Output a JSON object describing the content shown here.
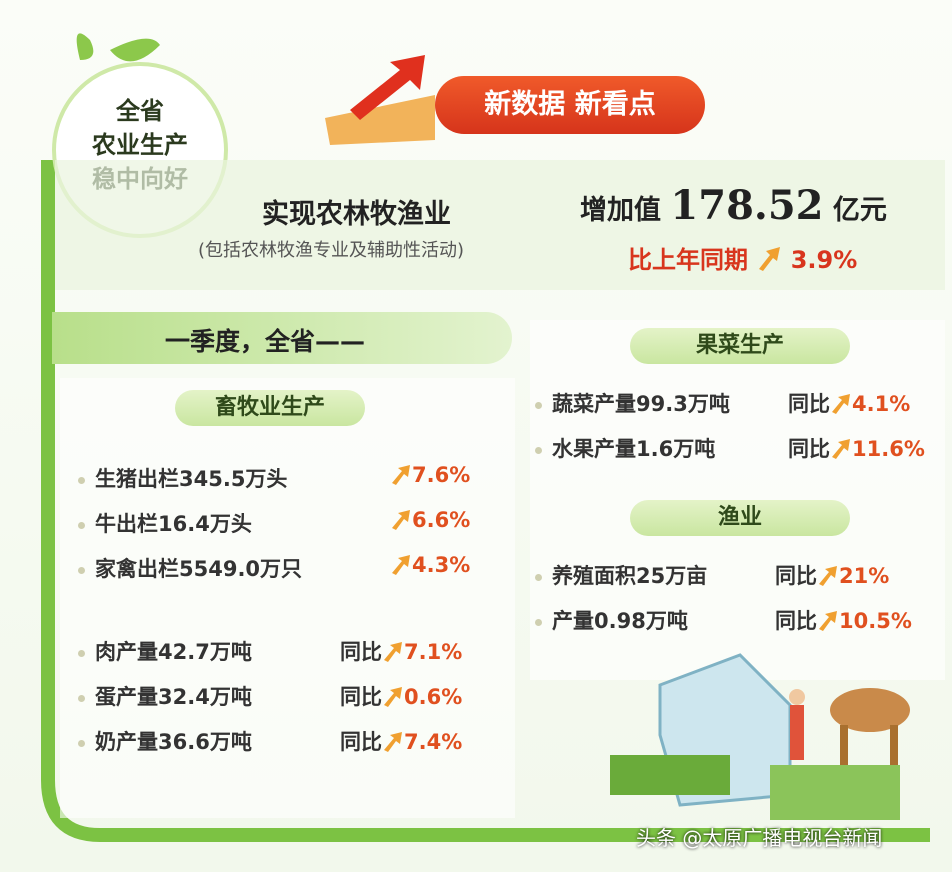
{
  "badge": {
    "lines": [
      "全省",
      "农业生产",
      "稳中向好"
    ]
  },
  "banner": {
    "title": "新数据 新看点"
  },
  "headline": {
    "subject": "实现农林牧渔业",
    "note": "(包括农林牧渔专业及辅助性活动)",
    "label": "增加值",
    "amount": "178.52",
    "unit": "亿元",
    "compare": "比上年同期",
    "growth": "3.9%"
  },
  "section": {
    "title": "一季度，全省——"
  },
  "livestock": {
    "title": "畜牧业生产",
    "rows": [
      {
        "text": "生猪出栏345.5万头",
        "prefix": "",
        "growth": "7.6%"
      },
      {
        "text": "牛出栏16.4万头",
        "prefix": "",
        "growth": "6.6%"
      },
      {
        "text": "家禽出栏5549.0万只",
        "prefix": "",
        "growth": "4.3%"
      }
    ],
    "rows2": [
      {
        "text": "肉产量42.7万吨",
        "prefix": "同比",
        "growth": "7.1%"
      },
      {
        "text": "蛋产量32.4万吨",
        "prefix": "同比",
        "growth": "0.6%"
      },
      {
        "text": "奶产量36.6万吨",
        "prefix": "同比",
        "growth": "7.4%"
      }
    ]
  },
  "produce": {
    "title": "果菜生产",
    "rows": [
      {
        "text": "蔬菜产量99.3万吨",
        "prefix": "同比",
        "growth": "4.1%"
      },
      {
        "text": "水果产量1.6万吨",
        "prefix": "同比",
        "growth": "11.6%"
      }
    ]
  },
  "fishery": {
    "title": "渔业",
    "rows": [
      {
        "text": "养殖面积25万亩",
        "prefix": "同比",
        "growth": "21%"
      },
      {
        "text": "产量0.98万吨",
        "prefix": "同比",
        "growth": "10.5%"
      }
    ]
  },
  "watermark": {
    "text": "头条 @太原广播电视台新闻"
  }
}
